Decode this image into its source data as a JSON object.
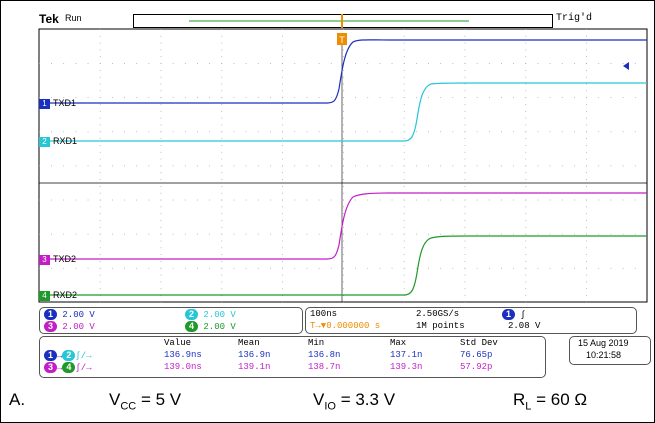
{
  "header": {
    "brand": "Tek",
    "run_status": "Run",
    "trigger_status": "Trig'd",
    "trigger_marker": "T"
  },
  "channels": [
    {
      "id": "1",
      "label": "TXD1",
      "color": "#1a2fbf"
    },
    {
      "id": "2",
      "label": "RXD1",
      "color": "#26c6d6"
    },
    {
      "id": "3",
      "label": "TXD2",
      "color": "#c21ec6"
    },
    {
      "id": "4",
      "label": "RXD2",
      "color": "#1f9a2a"
    }
  ],
  "settings": {
    "ch1_scale": "2.00 V",
    "ch2_scale": "2.00 V",
    "ch3_scale": "2.00 V",
    "ch4_scale": "2.00 V",
    "timebase": "100ns",
    "sample_rate": "2.50GS/s",
    "trigger_delay": "0.000000 s",
    "record_length": "1M points",
    "trigger_level": "2.08 V"
  },
  "measurements": {
    "headers": [
      "Value",
      "Mean",
      "Min",
      "Max",
      "Std Dev"
    ],
    "rows": [
      {
        "from": "1",
        "to": "2",
        "values": [
          "136.9ns",
          "136.9n",
          "136.8n",
          "137.1n",
          "76.65p"
        ],
        "color": "#1a2fbf"
      },
      {
        "from": "3",
        "to": "4",
        "values": [
          "139.0ns",
          "139.1n",
          "138.7n",
          "139.3n",
          "57.92p"
        ],
        "color": "#c21ec6"
      }
    ]
  },
  "datetime": {
    "date": "15 Aug 2019",
    "time": "10:21:58"
  },
  "caption": {
    "label": "A.",
    "vcc_main": "V",
    "vcc_sub": "CC",
    "vcc_value": " = 5 V",
    "vio_main": "V",
    "vio_sub": "IO",
    "vio_value": " = 3.3 V",
    "rl_main": "R",
    "rl_sub": "L",
    "rl_value": " = 60  Ω"
  }
}
